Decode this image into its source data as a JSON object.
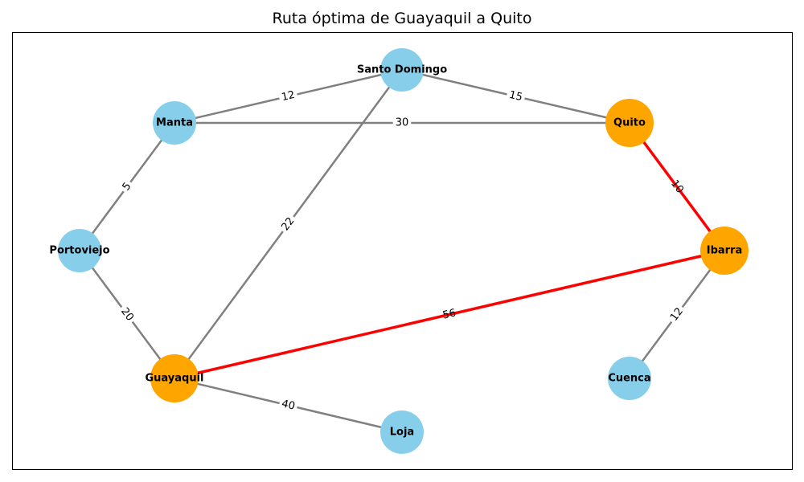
{
  "title": "Ruta óptima de Guayaquil a Quito",
  "colors": {
    "node_default": "#87CEEB",
    "node_path": "#FFA500",
    "edge_default": "#808080",
    "edge_path": "#FF0000"
  },
  "nodes": [
    {
      "id": "santo_domingo",
      "label": "Santo Domingo",
      "on_path": false
    },
    {
      "id": "manta",
      "label": "Manta",
      "on_path": false
    },
    {
      "id": "quito",
      "label": "Quito",
      "on_path": true
    },
    {
      "id": "portoviejo",
      "label": "Portoviejo",
      "on_path": false
    },
    {
      "id": "ibarra",
      "label": "Ibarra",
      "on_path": true
    },
    {
      "id": "guayaquil",
      "label": "Guayaquil",
      "on_path": true
    },
    {
      "id": "cuenca",
      "label": "Cuenca",
      "on_path": false
    },
    {
      "id": "loja",
      "label": "Loja",
      "on_path": false
    }
  ],
  "edges": [
    {
      "from": "manta",
      "to": "santo_domingo",
      "weight": "12",
      "on_path": false
    },
    {
      "from": "santo_domingo",
      "to": "quito",
      "weight": "15",
      "on_path": false
    },
    {
      "from": "manta",
      "to": "quito",
      "weight": "30",
      "on_path": false
    },
    {
      "from": "manta",
      "to": "portoviejo",
      "weight": "5",
      "on_path": false
    },
    {
      "from": "guayaquil",
      "to": "santo_domingo",
      "weight": "22",
      "on_path": false
    },
    {
      "from": "portoviejo",
      "to": "guayaquil",
      "weight": "20",
      "on_path": false
    },
    {
      "from": "guayaquil",
      "to": "loja",
      "weight": "40",
      "on_path": false
    },
    {
      "from": "ibarra",
      "to": "cuenca",
      "weight": "12",
      "on_path": false
    },
    {
      "from": "quito",
      "to": "ibarra",
      "weight": "10",
      "on_path": true
    },
    {
      "from": "guayaquil",
      "to": "ibarra",
      "weight": "56",
      "on_path": true
    }
  ]
}
